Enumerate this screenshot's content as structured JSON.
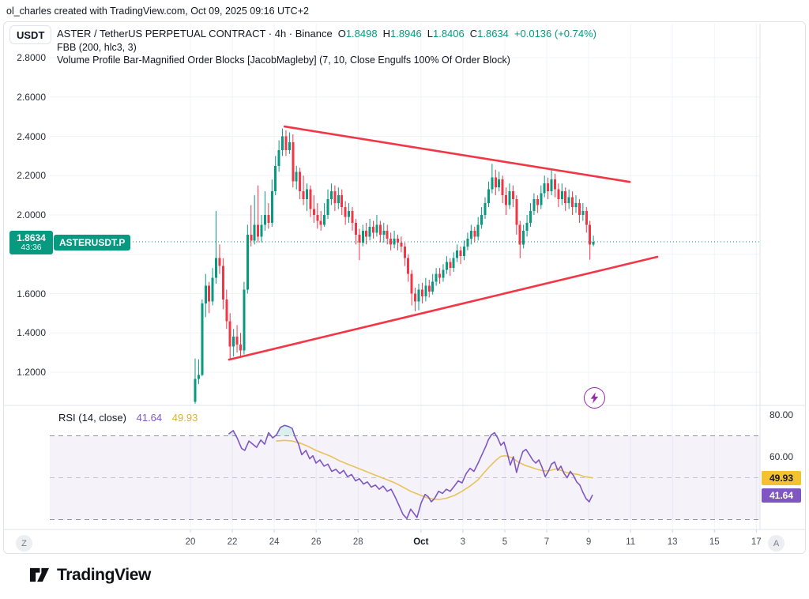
{
  "attribution": "ol_charles created with TradingView.com, Oct 09, 2025 09:16 UTC+2",
  "header": {
    "currency_badge": "USDT",
    "title": "ASTER / TetherUS PERPETUAL CONTRACT · 4h · Binance",
    "ohlc": {
      "o_label": "O",
      "o": "1.8498",
      "h_label": "H",
      "h": "1.8946",
      "l_label": "L",
      "l": "1.8406",
      "c_label": "C",
      "c": "1.8634",
      "change": "+0.0136 (+0.74%)"
    },
    "indicator1": "FBB (200, hlc3, 3)",
    "indicator2": "Volume Profile Bar-Magnified Order Blocks [JacobMagleby] (7, 10, Close Engulfs 100% Of Order Block)"
  },
  "price_badge": {
    "price": "1.8634",
    "countdown": "43:36",
    "symbol_label": "ASTERUSDT.P"
  },
  "price_scale": {
    "labels": [
      {
        "text": "2.8000",
        "price": 2.8
      },
      {
        "text": "2.6000",
        "price": 2.6
      },
      {
        "text": "2.4000",
        "price": 2.4
      },
      {
        "text": "2.2000",
        "price": 2.2
      },
      {
        "text": "2.0000",
        "price": 2.0
      },
      {
        "text": "1.6000",
        "price": 1.6
      },
      {
        "text": "1.4000",
        "price": 1.4
      },
      {
        "text": "1.2000",
        "price": 1.2
      }
    ]
  },
  "rsi_panel": {
    "legend_title": "RSI (14, close)",
    "value_main": "41.64",
    "value_ma": "49.93",
    "axis_labels": [
      {
        "text": "80.00",
        "value": 80
      },
      {
        "text": "60.00",
        "value": 60
      }
    ],
    "badges": [
      {
        "text": "49.93",
        "value": 49.93,
        "bg": "#f2c230",
        "fg": "#131722"
      },
      {
        "text": "41.64",
        "value": 41.64,
        "bg": "#7e57c2",
        "fg": "#ffffff"
      }
    ]
  },
  "time_axis": {
    "left_edge": "Z",
    "right_edge": "A",
    "ticks": [
      {
        "label": "20",
        "day": 0
      },
      {
        "label": "22",
        "day": 2
      },
      {
        "label": "24",
        "day": 4
      },
      {
        "label": "26",
        "day": 6
      },
      {
        "label": "28",
        "day": 8
      },
      {
        "label": "Oct",
        "day": 11,
        "bold": true
      },
      {
        "label": "3",
        "day": 13
      },
      {
        "label": "5",
        "day": 15
      },
      {
        "label": "7",
        "day": 17
      },
      {
        "label": "9",
        "day": 19
      },
      {
        "label": "11",
        "day": 21
      },
      {
        "label": "13",
        "day": 23
      },
      {
        "label": "15",
        "day": 25
      },
      {
        "label": "17",
        "day": 27
      }
    ]
  },
  "footer": {
    "brand": "TradingView"
  },
  "colors": {
    "up": "#089981",
    "down": "#f23645",
    "trendline": "#f23645",
    "rsi_line": "#7e57c2",
    "rsi_ma": "#e8c35a",
    "rsi_band_fill": "rgba(126,87,194,0.08)",
    "rsi_band_edge": "#8f93a3",
    "rsi_mid": "#c3c6d0",
    "grid": "#f0f3fa",
    "pane_border": "#e0e3eb",
    "current_price": "#089981",
    "flash": "#9c27b0",
    "overbought_fill": "rgba(8,153,129,0.15)"
  },
  "chart_data": {
    "type": "candlestick",
    "symbol": "ASTERUSDT.P",
    "interval": "4h",
    "exchange": "Binance",
    "current_price": 1.8634,
    "price_range_visible": [
      1.2,
      2.8
    ],
    "grid_h_prices": [
      2.8,
      2.6,
      2.4,
      2.2,
      2.0,
      1.8,
      1.6,
      1.4,
      1.2
    ],
    "candles_start": "Sep 20, 4h bars",
    "candles": [
      [
        1.05,
        1.27,
        1.04,
        1.165
      ],
      [
        1.165,
        1.265,
        1.14,
        1.185
      ],
      [
        1.185,
        1.57,
        1.18,
        1.55
      ],
      [
        1.55,
        1.7,
        1.48,
        1.64
      ],
      [
        1.64,
        1.66,
        1.5,
        1.56
      ],
      [
        1.56,
        1.73,
        1.54,
        1.68
      ],
      [
        1.68,
        2.02,
        1.65,
        1.78
      ],
      [
        1.78,
        1.85,
        1.7,
        1.74
      ],
      [
        1.74,
        1.78,
        1.52,
        1.57
      ],
      [
        1.57,
        1.62,
        1.42,
        1.46
      ],
      [
        1.46,
        1.5,
        1.26,
        1.33
      ],
      [
        1.33,
        1.42,
        1.28,
        1.38
      ],
      [
        1.38,
        1.44,
        1.3,
        1.34
      ],
      [
        1.34,
        1.4,
        1.275,
        1.31
      ],
      [
        1.31,
        1.66,
        1.29,
        1.62
      ],
      [
        1.62,
        1.95,
        1.6,
        1.9
      ],
      [
        1.9,
        2.05,
        1.84,
        1.87
      ],
      [
        1.87,
        2.1,
        1.85,
        1.95
      ],
      [
        1.95,
        2.15,
        1.86,
        1.89
      ],
      [
        1.89,
        2.0,
        1.86,
        1.95
      ],
      [
        1.95,
        2.12,
        1.92,
        2.0
      ],
      [
        2.0,
        2.06,
        1.93,
        1.96
      ],
      [
        1.96,
        2.18,
        1.94,
        2.12
      ],
      [
        2.12,
        2.3,
        2.1,
        2.25
      ],
      [
        2.25,
        2.38,
        2.22,
        2.33
      ],
      [
        2.33,
        2.44,
        2.3,
        2.4
      ],
      [
        2.4,
        2.43,
        2.3,
        2.33
      ],
      [
        2.33,
        2.42,
        2.31,
        2.37
      ],
      [
        2.37,
        2.41,
        2.14,
        2.17
      ],
      [
        2.17,
        2.25,
        2.13,
        2.22
      ],
      [
        2.22,
        2.24,
        2.08,
        2.12
      ],
      [
        2.12,
        2.2,
        2.05,
        2.08
      ],
      [
        2.08,
        2.16,
        2.02,
        2.13
      ],
      [
        2.13,
        2.15,
        1.99,
        2.03
      ],
      [
        2.03,
        2.1,
        1.96,
        2.0
      ],
      [
        2.0,
        2.06,
        1.93,
        1.97
      ],
      [
        1.97,
        2.02,
        1.92,
        1.95
      ],
      [
        1.95,
        2.06,
        1.94,
        2.0
      ],
      [
        2.0,
        2.13,
        1.98,
        2.08
      ],
      [
        2.08,
        2.16,
        2.05,
        2.12
      ],
      [
        2.12,
        2.15,
        2.02,
        2.06
      ],
      [
        2.06,
        2.14,
        2.03,
        2.1
      ],
      [
        2.1,
        2.13,
        2.0,
        2.04
      ],
      [
        2.04,
        2.07,
        1.95,
        1.99
      ],
      [
        1.99,
        2.06,
        1.96,
        2.02
      ],
      [
        2.02,
        2.04,
        1.92,
        1.96
      ],
      [
        1.96,
        1.98,
        1.85,
        1.9
      ],
      [
        1.9,
        1.93,
        1.77,
        1.86
      ],
      [
        1.86,
        1.95,
        1.84,
        1.92
      ],
      [
        1.92,
        1.96,
        1.85,
        1.89
      ],
      [
        1.89,
        1.98,
        1.87,
        1.94
      ],
      [
        1.94,
        1.97,
        1.88,
        1.91
      ],
      [
        1.91,
        2.0,
        1.89,
        1.95
      ],
      [
        1.95,
        1.97,
        1.86,
        1.9
      ],
      [
        1.9,
        1.96,
        1.86,
        1.92
      ],
      [
        1.92,
        1.95,
        1.85,
        1.88
      ],
      [
        1.88,
        1.91,
        1.82,
        1.85
      ],
      [
        1.85,
        1.92,
        1.83,
        1.88
      ],
      [
        1.88,
        1.9,
        1.82,
        1.86
      ],
      [
        1.86,
        1.89,
        1.81,
        1.84
      ],
      [
        1.84,
        1.86,
        1.74,
        1.78
      ],
      [
        1.78,
        1.8,
        1.66,
        1.7
      ],
      [
        1.7,
        1.72,
        1.54,
        1.6
      ],
      [
        1.6,
        1.63,
        1.51,
        1.56
      ],
      [
        1.56,
        1.65,
        1.515,
        1.62
      ],
      [
        1.62,
        1.655,
        1.55,
        1.585
      ],
      [
        1.585,
        1.68,
        1.56,
        1.64
      ],
      [
        1.64,
        1.67,
        1.58,
        1.61
      ],
      [
        1.61,
        1.7,
        1.595,
        1.66
      ],
      [
        1.66,
        1.73,
        1.64,
        1.7
      ],
      [
        1.7,
        1.73,
        1.65,
        1.68
      ],
      [
        1.68,
        1.75,
        1.66,
        1.72
      ],
      [
        1.72,
        1.79,
        1.7,
        1.76
      ],
      [
        1.76,
        1.78,
        1.69,
        1.73
      ],
      [
        1.73,
        1.81,
        1.71,
        1.78
      ],
      [
        1.78,
        1.85,
        1.76,
        1.82
      ],
      [
        1.82,
        1.84,
        1.75,
        1.79
      ],
      [
        1.79,
        1.87,
        1.77,
        1.84
      ],
      [
        1.84,
        1.91,
        1.82,
        1.88
      ],
      [
        1.88,
        1.95,
        1.85,
        1.92
      ],
      [
        1.92,
        1.94,
        1.86,
        1.89
      ],
      [
        1.89,
        1.99,
        1.87,
        1.95
      ],
      [
        1.95,
        2.04,
        1.93,
        2.0
      ],
      [
        2.0,
        2.09,
        1.98,
        2.06
      ],
      [
        2.06,
        2.17,
        2.04,
        2.13
      ],
      [
        2.13,
        2.26,
        2.11,
        2.19
      ],
      [
        2.19,
        2.23,
        2.1,
        2.14
      ],
      [
        2.14,
        2.22,
        2.12,
        2.18
      ],
      [
        2.18,
        2.2,
        2.06,
        2.1
      ],
      [
        2.1,
        2.14,
        2.0,
        2.05
      ],
      [
        2.05,
        2.16,
        2.03,
        2.12
      ],
      [
        2.12,
        2.15,
        2.04,
        2.08
      ],
      [
        2.08,
        2.1,
        1.9,
        1.95
      ],
      [
        1.95,
        1.97,
        1.78,
        1.85
      ],
      [
        1.85,
        1.95,
        1.83,
        1.92
      ],
      [
        1.92,
        2.0,
        1.89,
        1.96
      ],
      [
        1.96,
        2.06,
        1.94,
        2.02
      ],
      [
        2.02,
        2.11,
        2.0,
        2.08
      ],
      [
        2.08,
        2.1,
        2.01,
        2.05
      ],
      [
        2.05,
        2.15,
        2.03,
        2.11
      ],
      [
        2.11,
        2.2,
        2.09,
        2.16
      ],
      [
        2.16,
        2.19,
        2.08,
        2.12
      ],
      [
        2.12,
        2.23,
        2.1,
        2.18
      ],
      [
        2.18,
        2.21,
        2.09,
        2.13
      ],
      [
        2.13,
        2.16,
        2.04,
        2.08
      ],
      [
        2.08,
        2.16,
        2.05,
        2.12
      ],
      [
        2.12,
        2.14,
        2.02,
        2.06
      ],
      [
        2.06,
        2.13,
        2.03,
        2.09
      ],
      [
        2.09,
        2.12,
        2.0,
        2.04
      ],
      [
        2.04,
        2.1,
        2.01,
        2.06
      ],
      [
        2.06,
        2.08,
        1.96,
        2.0
      ],
      [
        2.0,
        2.06,
        1.97,
        2.02
      ],
      [
        2.02,
        2.04,
        1.91,
        1.95
      ],
      [
        1.95,
        1.97,
        1.772,
        1.85
      ],
      [
        1.8498,
        1.8946,
        1.8406,
        1.8634
      ]
    ],
    "trendlines": [
      {
        "name": "descending-resistance",
        "i1": 25.6,
        "p1": 2.45,
        "i2": 124.4,
        "p2": 2.168
      },
      {
        "name": "ascending-support",
        "i1": 9.7,
        "p1": 1.264,
        "i2": 132.3,
        "p2": 1.787
      }
    ],
    "rsi": {
      "length": 14,
      "source": "close",
      "last": 41.64,
      "ma_last": 49.93,
      "band": [
        30,
        70
      ],
      "mid": 50,
      "points": [
        [
          9.7,
          71
        ],
        [
          10.9,
          72.5
        ],
        [
          12,
          69
        ],
        [
          13.3,
          64
        ],
        [
          14.2,
          63
        ],
        [
          15.4,
          67.5
        ],
        [
          16.5,
          66
        ],
        [
          17.6,
          64.5
        ],
        [
          18.8,
          68
        ],
        [
          19.9,
          66
        ],
        [
          21,
          71.5
        ],
        [
          22.2,
          69
        ],
        [
          23.3,
          70.5
        ],
        [
          24.4,
          74
        ],
        [
          25.6,
          75
        ],
        [
          26.7,
          74.5
        ],
        [
          27.8,
          73.5
        ],
        [
          28.5,
          70
        ],
        [
          29.6,
          66
        ],
        [
          30.5,
          61
        ],
        [
          31.7,
          63
        ],
        [
          32.8,
          59
        ],
        [
          33.7,
          60.5
        ],
        [
          34.6,
          57
        ],
        [
          35.7,
          58.5
        ],
        [
          36.9,
          55.5
        ],
        [
          38,
          56.5
        ],
        [
          39.1,
          53
        ],
        [
          40.3,
          54
        ],
        [
          41.4,
          52
        ],
        [
          42.5,
          53.5
        ],
        [
          43.6,
          50.5
        ],
        [
          44.8,
          51.5
        ],
        [
          45.9,
          48.5
        ],
        [
          47,
          49.5
        ],
        [
          48.2,
          47
        ],
        [
          49.3,
          48
        ],
        [
          50.4,
          45.5
        ],
        [
          51.6,
          46.5
        ],
        [
          52.7,
          44.5
        ],
        [
          53.8,
          46
        ],
        [
          55,
          43.5
        ],
        [
          56.1,
          44.5
        ],
        [
          57.2,
          41
        ],
        [
          58.3,
          37
        ],
        [
          59.5,
          32.5
        ],
        [
          60.6,
          30.5
        ],
        [
          61.7,
          35
        ],
        [
          62.6,
          33
        ],
        [
          63.5,
          31
        ],
        [
          64.7,
          38
        ],
        [
          65.8,
          42
        ],
        [
          66.7,
          41
        ],
        [
          67.6,
          38.5
        ],
        [
          68.5,
          40
        ],
        [
          69.7,
          43.5
        ],
        [
          70.8,
          42.5
        ],
        [
          71.9,
          44.5
        ],
        [
          73,
          43.5
        ],
        [
          74.2,
          46
        ],
        [
          75.3,
          48.5
        ],
        [
          76.4,
          47.5
        ],
        [
          77.6,
          52
        ],
        [
          78.7,
          54.5
        ],
        [
          79.8,
          53
        ],
        [
          81,
          57
        ],
        [
          82.1,
          61
        ],
        [
          83.2,
          65
        ],
        [
          83.9,
          68
        ],
        [
          84.8,
          70.5
        ],
        [
          85.7,
          71.5
        ],
        [
          86.6,
          69
        ],
        [
          87.5,
          65.5
        ],
        [
          88.4,
          67
        ],
        [
          89.3,
          62
        ],
        [
          90.2,
          56
        ],
        [
          91.1,
          60
        ],
        [
          92,
          52.5
        ],
        [
          92.9,
          58
        ],
        [
          93.8,
          62.5
        ],
        [
          94.7,
          63.5
        ],
        [
          95.7,
          61
        ],
        [
          96.6,
          58.5
        ],
        [
          97.5,
          57
        ],
        [
          98.4,
          58.5
        ],
        [
          99.3,
          55
        ],
        [
          100.2,
          50.5
        ],
        [
          101.1,
          53
        ],
        [
          102,
          56.5
        ],
        [
          102.9,
          57.5
        ],
        [
          103.8,
          53.5
        ],
        [
          104.7,
          55.5
        ],
        [
          105.6,
          52
        ],
        [
          106.5,
          50
        ],
        [
          107.4,
          53
        ],
        [
          108.3,
          51
        ],
        [
          109.2,
          48
        ],
        [
          110.1,
          46.5
        ],
        [
          111,
          43
        ],
        [
          111.9,
          40
        ],
        [
          112.8,
          38.5
        ],
        [
          113.7,
          41.64
        ]
      ],
      "ma_points": [
        [
          23.3,
          67.5
        ],
        [
          25.6,
          67.8
        ],
        [
          27.8,
          67.5
        ],
        [
          30.1,
          66.5
        ],
        [
          32.3,
          65
        ],
        [
          34.6,
          63
        ],
        [
          36.9,
          61.5
        ],
        [
          39.1,
          60
        ],
        [
          41.4,
          58
        ],
        [
          43.6,
          56.5
        ],
        [
          45.9,
          55
        ],
        [
          48.2,
          53.5
        ],
        [
          50.4,
          52
        ],
        [
          52.7,
          50.5
        ],
        [
          55,
          49
        ],
        [
          57.2,
          47.5
        ],
        [
          59.5,
          45.5
        ],
        [
          61.7,
          43.5
        ],
        [
          64,
          42
        ],
        [
          66.3,
          40.5
        ],
        [
          68.1,
          39.8
        ],
        [
          69.9,
          39.6
        ],
        [
          71.9,
          40.2
        ],
        [
          74.2,
          41.5
        ],
        [
          76.4,
          43.5
        ],
        [
          78.7,
          46
        ],
        [
          81,
          49
        ],
        [
          82.5,
          52
        ],
        [
          84.4,
          55.5
        ],
        [
          86.2,
          58.5
        ],
        [
          87.5,
          60.2
        ],
        [
          88.9,
          60.5
        ],
        [
          90.7,
          59.5
        ],
        [
          92.5,
          57.5
        ],
        [
          94.3,
          56
        ],
        [
          96.1,
          55
        ],
        [
          97.9,
          54
        ],
        [
          99.7,
          53.2
        ],
        [
          101.5,
          53.4
        ],
        [
          103.3,
          54.2
        ],
        [
          104.7,
          53.5
        ],
        [
          106.1,
          52.5
        ],
        [
          107.9,
          52
        ],
        [
          109.7,
          51.5
        ],
        [
          111.5,
          50.5
        ],
        [
          113.7,
          49.93
        ]
      ]
    }
  }
}
